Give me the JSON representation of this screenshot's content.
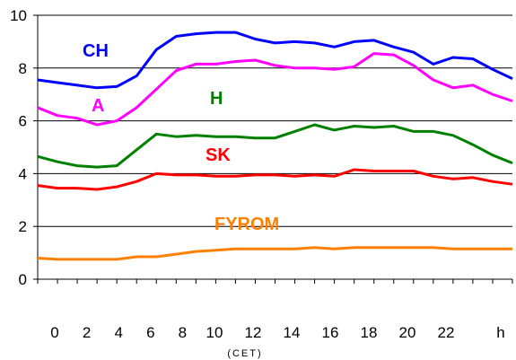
{
  "chart_data": {
    "type": "line",
    "x_tick_labels": [
      "0",
      "2",
      "4",
      "6",
      "8",
      "10",
      "12",
      "14",
      "16",
      "18",
      "20",
      "22",
      "h"
    ],
    "x_unit_label": "(CET)",
    "y_tick_labels": [
      "0",
      "2",
      "4",
      "6",
      "8",
      "10"
    ],
    "ylim": [
      0,
      10
    ],
    "xlim": [
      0,
      24
    ],
    "grid": true,
    "x": [
      0,
      1,
      2,
      3,
      4,
      5,
      6,
      7,
      8,
      9,
      10,
      11,
      12,
      13,
      14,
      15,
      16,
      17,
      18,
      19,
      20,
      21,
      22,
      23,
      24
    ],
    "series": [
      {
        "name": "CH",
        "color": "#0000ff",
        "values": [
          7.55,
          7.45,
          7.35,
          7.25,
          7.3,
          7.7,
          8.7,
          9.2,
          9.3,
          9.35,
          9.35,
          9.1,
          8.95,
          9.0,
          8.95,
          8.8,
          9.0,
          9.05,
          8.8,
          8.6,
          8.15,
          8.4,
          8.35,
          7.95,
          7.6
        ]
      },
      {
        "name": "A",
        "color": "#ff00ff",
        "values": [
          6.5,
          6.2,
          6.1,
          5.85,
          6.0,
          6.5,
          7.2,
          7.9,
          8.15,
          8.15,
          8.25,
          8.3,
          8.1,
          8.0,
          8.0,
          7.95,
          8.05,
          8.55,
          8.5,
          8.1,
          7.55,
          7.25,
          7.35,
          7.0,
          6.75
        ]
      },
      {
        "name": "H",
        "color": "#008000",
        "values": [
          4.65,
          4.45,
          4.3,
          4.25,
          4.3,
          4.9,
          5.5,
          5.4,
          5.45,
          5.4,
          5.4,
          5.35,
          5.35,
          5.6,
          5.85,
          5.65,
          5.8,
          5.75,
          5.8,
          5.6,
          5.6,
          5.45,
          5.1,
          4.7,
          4.4
        ]
      },
      {
        "name": "SK",
        "color": "#ff0000",
        "values": [
          3.55,
          3.45,
          3.45,
          3.4,
          3.5,
          3.7,
          4.0,
          3.95,
          3.95,
          3.9,
          3.9,
          3.95,
          3.95,
          3.9,
          3.95,
          3.9,
          4.15,
          4.1,
          4.1,
          4.1,
          3.9,
          3.8,
          3.85,
          3.7,
          3.6
        ]
      },
      {
        "name": "FYROM",
        "color": "#ff8000",
        "values": [
          0.8,
          0.75,
          0.75,
          0.75,
          0.75,
          0.85,
          0.85,
          0.95,
          1.05,
          1.1,
          1.15,
          1.15,
          1.15,
          1.15,
          1.2,
          1.15,
          1.2,
          1.2,
          1.2,
          1.2,
          1.2,
          1.15,
          1.15,
          1.15,
          1.15
        ]
      }
    ]
  }
}
